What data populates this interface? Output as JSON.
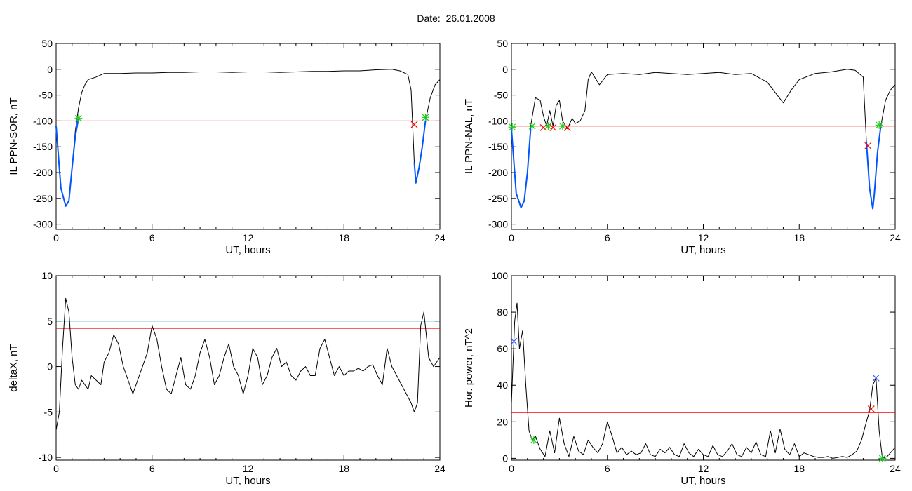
{
  "title": "Date:  26.01.2008",
  "chart_data": [
    {
      "type": "line",
      "ylabel": "IL PPN-SOR, nT",
      "xlabel": "UT, hours",
      "xlim": [
        0,
        24
      ],
      "ylim": [
        -310,
        50
      ],
      "xticks": [
        "0",
        "6",
        "12",
        "18",
        "24"
      ],
      "yticks": [
        "50",
        "0",
        "-50",
        "-100",
        "-150",
        "-200",
        "-250",
        "-300"
      ],
      "thresholds": [
        {
          "y": -100,
          "color": "#ff0000"
        }
      ],
      "series": [
        {
          "color": "#000000",
          "x": [
            0,
            0.3,
            0.6,
            0.8,
            1.0,
            1.2,
            1.4,
            1.6,
            1.8,
            2.0,
            2.2,
            2.5,
            3.0,
            4.0,
            5.0,
            6.0,
            7.0,
            8.0,
            9.0,
            10.0,
            11.0,
            12.0,
            13.0,
            14.0,
            15.0,
            16.0,
            17.0,
            18.0,
            19.0,
            20.0,
            21.0,
            21.5,
            22.0,
            22.2,
            22.4,
            22.5,
            22.7,
            22.9,
            23.1,
            23.4,
            23.7,
            24.0
          ],
          "y": [
            -110,
            -230,
            -265,
            -255,
            -190,
            -120,
            -75,
            -45,
            -30,
            -20,
            -18,
            -15,
            -8,
            -8,
            -7,
            -7,
            -6,
            -6,
            -5,
            -5,
            -6,
            -5,
            -5,
            -6,
            -5,
            -4,
            -4,
            -3,
            -3,
            -1,
            0,
            -3,
            -10,
            -40,
            -180,
            -220,
            -190,
            -150,
            -100,
            -55,
            -30,
            -20
          ]
        },
        {
          "color": "#0055ff",
          "x": [
            0,
            0.3,
            0.6,
            0.8,
            1.0,
            1.2,
            1.4
          ],
          "y": [
            -110,
            -230,
            -265,
            -255,
            -190,
            -130,
            -95
          ]
        },
        {
          "color": "#0055ff",
          "x": [
            22.4,
            22.5,
            22.7,
            22.9,
            23.1
          ],
          "y": [
            -180,
            -220,
            -190,
            -150,
            -100
          ]
        }
      ],
      "markers": [
        {
          "x": 1.4,
          "y": -95,
          "symbol": "*",
          "color": "#22cc22"
        },
        {
          "x": 22.4,
          "y": -107,
          "symbol": "x",
          "color": "#ff0000"
        },
        {
          "x": 23.1,
          "y": -93,
          "symbol": "*",
          "color": "#22cc22"
        }
      ]
    },
    {
      "type": "line",
      "ylabel": "IL PPN-NAL, nT",
      "xlabel": "UT, hours",
      "xlim": [
        0,
        24
      ],
      "ylim": [
        -310,
        50
      ],
      "xticks": [
        "0",
        "6",
        "12",
        "18",
        "24"
      ],
      "yticks": [
        "50",
        "0",
        "-50",
        "-100",
        "-150",
        "-200",
        "-250",
        "-300"
      ],
      "thresholds": [
        {
          "y": -110,
          "color": "#ff0000"
        }
      ],
      "series": [
        {
          "color": "#000000",
          "x": [
            0,
            0.3,
            0.6,
            0.8,
            1.0,
            1.2,
            1.5,
            1.8,
            2.0,
            2.2,
            2.4,
            2.6,
            2.8,
            3.0,
            3.2,
            3.5,
            3.8,
            4.0,
            4.3,
            4.6,
            4.8,
            5.0,
            5.5,
            6.0,
            7.0,
            8.0,
            9.0,
            10.0,
            11.0,
            12.0,
            13.0,
            14.0,
            15.0,
            16.0,
            16.5,
            17.0,
            17.5,
            18.0,
            19.0,
            20.0,
            21.0,
            21.5,
            22.0,
            22.2,
            22.4,
            22.6,
            22.7,
            22.9,
            23.1,
            23.4,
            23.7,
            24.0
          ],
          "y": [
            -115,
            -240,
            -268,
            -255,
            -200,
            -110,
            -55,
            -60,
            -90,
            -110,
            -80,
            -110,
            -70,
            -60,
            -100,
            -115,
            -95,
            -105,
            -100,
            -80,
            -20,
            -5,
            -30,
            -10,
            -8,
            -10,
            -6,
            -8,
            -10,
            -8,
            -6,
            -10,
            -8,
            -25,
            -45,
            -65,
            -40,
            -20,
            -8,
            -5,
            0,
            -2,
            -15,
            -140,
            -230,
            -270,
            -240,
            -160,
            -110,
            -60,
            -40,
            -30
          ]
        },
        {
          "color": "#0055ff",
          "x": [
            0,
            0.3,
            0.6,
            0.8,
            1.0,
            1.2
          ],
          "y": [
            -115,
            -240,
            -268,
            -255,
            -200,
            -115
          ]
        },
        {
          "color": "#0055ff",
          "x": [
            22.2,
            22.4,
            22.6,
            22.7,
            22.9,
            23.1
          ],
          "y": [
            -140,
            -230,
            -270,
            -240,
            -160,
            -110
          ]
        }
      ],
      "markers": [
        {
          "x": 0.05,
          "y": -112,
          "symbol": "*",
          "color": "#22cc22"
        },
        {
          "x": 1.3,
          "y": -110,
          "symbol": "*",
          "color": "#22cc22"
        },
        {
          "x": 2.0,
          "y": -113,
          "symbol": "x",
          "color": "#ff0000"
        },
        {
          "x": 2.3,
          "y": -110,
          "symbol": "*",
          "color": "#22cc22"
        },
        {
          "x": 2.6,
          "y": -113,
          "symbol": "x",
          "color": "#ff0000"
        },
        {
          "x": 3.2,
          "y": -110,
          "symbol": "*",
          "color": "#22cc22"
        },
        {
          "x": 3.5,
          "y": -113,
          "symbol": "x",
          "color": "#ff0000"
        },
        {
          "x": 22.3,
          "y": -148,
          "symbol": "x",
          "color": "#ff0000"
        },
        {
          "x": 23.0,
          "y": -108,
          "symbol": "*",
          "color": "#22cc22"
        }
      ]
    },
    {
      "type": "line",
      "ylabel": "deltaX, nT",
      "xlabel": "UT, hours",
      "xlim": [
        0,
        24
      ],
      "ylim": [
        -10.3,
        10
      ],
      "xticks": [
        "0",
        "6",
        "12",
        "18",
        "24"
      ],
      "yticks": [
        "10",
        "5",
        "0",
        "-5",
        "-10"
      ],
      "thresholds": [
        {
          "y": 5.0,
          "color": "#008b8b"
        },
        {
          "y": 4.2,
          "color": "#ff0000"
        }
      ],
      "series": [
        {
          "color": "#000000",
          "x": [
            0,
            0.2,
            0.4,
            0.6,
            0.8,
            1.0,
            1.2,
            1.4,
            1.6,
            1.8,
            2.0,
            2.2,
            2.5,
            2.8,
            3.0,
            3.3,
            3.6,
            3.9,
            4.2,
            4.5,
            4.8,
            5.1,
            5.4,
            5.7,
            6.0,
            6.3,
            6.6,
            6.9,
            7.2,
            7.5,
            7.8,
            8.1,
            8.4,
            8.7,
            9.0,
            9.3,
            9.6,
            9.9,
            10.2,
            10.5,
            10.8,
            11.1,
            11.4,
            11.7,
            12.0,
            12.3,
            12.6,
            12.9,
            13.2,
            13.5,
            13.8,
            14.1,
            14.4,
            14.7,
            15.0,
            15.3,
            15.6,
            15.9,
            16.2,
            16.5,
            16.8,
            17.1,
            17.4,
            17.7,
            18.0,
            18.3,
            18.6,
            18.9,
            19.2,
            19.5,
            19.8,
            20.1,
            20.4,
            20.7,
            21.0,
            21.3,
            21.6,
            21.9,
            22.2,
            22.4,
            22.6,
            22.8,
            23.0,
            23.3,
            23.6,
            24.0
          ],
          "y": [
            -7,
            -5,
            2,
            7.5,
            6,
            1,
            -2,
            -2.5,
            -1.5,
            -2,
            -2.5,
            -1,
            -1.5,
            -2,
            0.5,
            1.5,
            3.5,
            2.5,
            0,
            -1.5,
            -3,
            -1.5,
            0,
            1.5,
            4.5,
            3,
            0,
            -2.5,
            -3,
            -1,
            1,
            -2,
            -2.5,
            -1,
            1.5,
            3,
            1,
            -2,
            -1,
            1,
            2.5,
            0,
            -1,
            -3,
            -1,
            2,
            1,
            -2,
            -1,
            1,
            2,
            0,
            0.5,
            -1,
            -1.5,
            -0.5,
            0,
            -1,
            -1,
            2,
            3,
            1,
            -1,
            0,
            -1,
            -0.5,
            -0.5,
            -0.2,
            -0.5,
            0,
            0.2,
            -1,
            -2,
            2,
            0,
            -1,
            -2,
            -3,
            -4,
            -5,
            -4,
            4.5,
            6,
            1,
            0,
            1
          ]
        }
      ],
      "markers": []
    },
    {
      "type": "line",
      "ylabel": "Hor. power, nT^2",
      "xlabel": "UT, hours",
      "xlim": [
        0,
        24
      ],
      "ylim": [
        -1,
        100
      ],
      "xticks": [
        "0",
        "6",
        "12",
        "18",
        "24"
      ],
      "yticks": [
        "100",
        "80",
        "60",
        "40",
        "20",
        "0"
      ],
      "thresholds": [
        {
          "y": 25,
          "color": "#ff0000"
        }
      ],
      "series": [
        {
          "color": "#000000",
          "x": [
            0,
            0.2,
            0.35,
            0.5,
            0.7,
            0.9,
            1.1,
            1.3,
            1.5,
            1.8,
            2.1,
            2.4,
            2.7,
            3.0,
            3.3,
            3.6,
            3.9,
            4.2,
            4.5,
            4.8,
            5.1,
            5.4,
            5.7,
            6.0,
            6.3,
            6.6,
            6.9,
            7.2,
            7.5,
            7.8,
            8.1,
            8.4,
            8.7,
            9.0,
            9.3,
            9.6,
            9.9,
            10.2,
            10.5,
            10.8,
            11.1,
            11.4,
            11.7,
            12.0,
            12.3,
            12.6,
            12.9,
            13.2,
            13.5,
            13.8,
            14.1,
            14.4,
            14.7,
            15.0,
            15.3,
            15.6,
            15.9,
            16.2,
            16.5,
            16.8,
            17.1,
            17.4,
            17.7,
            18.0,
            18.3,
            18.6,
            18.9,
            19.2,
            19.5,
            19.8,
            20.1,
            20.4,
            20.7,
            21.0,
            21.3,
            21.6,
            21.9,
            22.2,
            22.4,
            22.6,
            22.8,
            23.0,
            23.2,
            23.5,
            23.8,
            24.0
          ],
          "y": [
            30,
            75,
            85,
            60,
            70,
            40,
            15,
            10,
            12,
            5,
            1,
            15,
            3,
            22,
            8,
            1,
            12,
            4,
            2,
            10,
            6,
            3,
            8,
            20,
            12,
            3,
            6,
            2,
            4,
            2,
            3,
            8,
            2,
            1,
            5,
            3,
            6,
            2,
            1,
            8,
            3,
            1,
            5,
            2,
            1,
            7,
            2,
            1,
            4,
            8,
            2,
            1,
            6,
            3,
            9,
            2,
            1,
            15,
            3,
            16,
            5,
            2,
            8,
            1,
            3,
            2,
            1,
            0.5,
            0.5,
            1,
            0,
            0.5,
            1,
            0.5,
            2,
            4,
            10,
            20,
            26,
            40,
            44,
            15,
            0,
            1,
            4,
            6
          ]
        }
      ],
      "markers": [
        {
          "x": 0.15,
          "y": 64,
          "symbol": "x",
          "color": "#3355ff"
        },
        {
          "x": 1.4,
          "y": 10,
          "symbol": "*",
          "color": "#22cc22"
        },
        {
          "x": 22.5,
          "y": 27,
          "symbol": "x",
          "color": "#ff0000"
        },
        {
          "x": 22.8,
          "y": 44,
          "symbol": "x",
          "color": "#3355ff"
        },
        {
          "x": 23.2,
          "y": 0,
          "symbol": "*",
          "color": "#22cc22"
        }
      ]
    }
  ]
}
